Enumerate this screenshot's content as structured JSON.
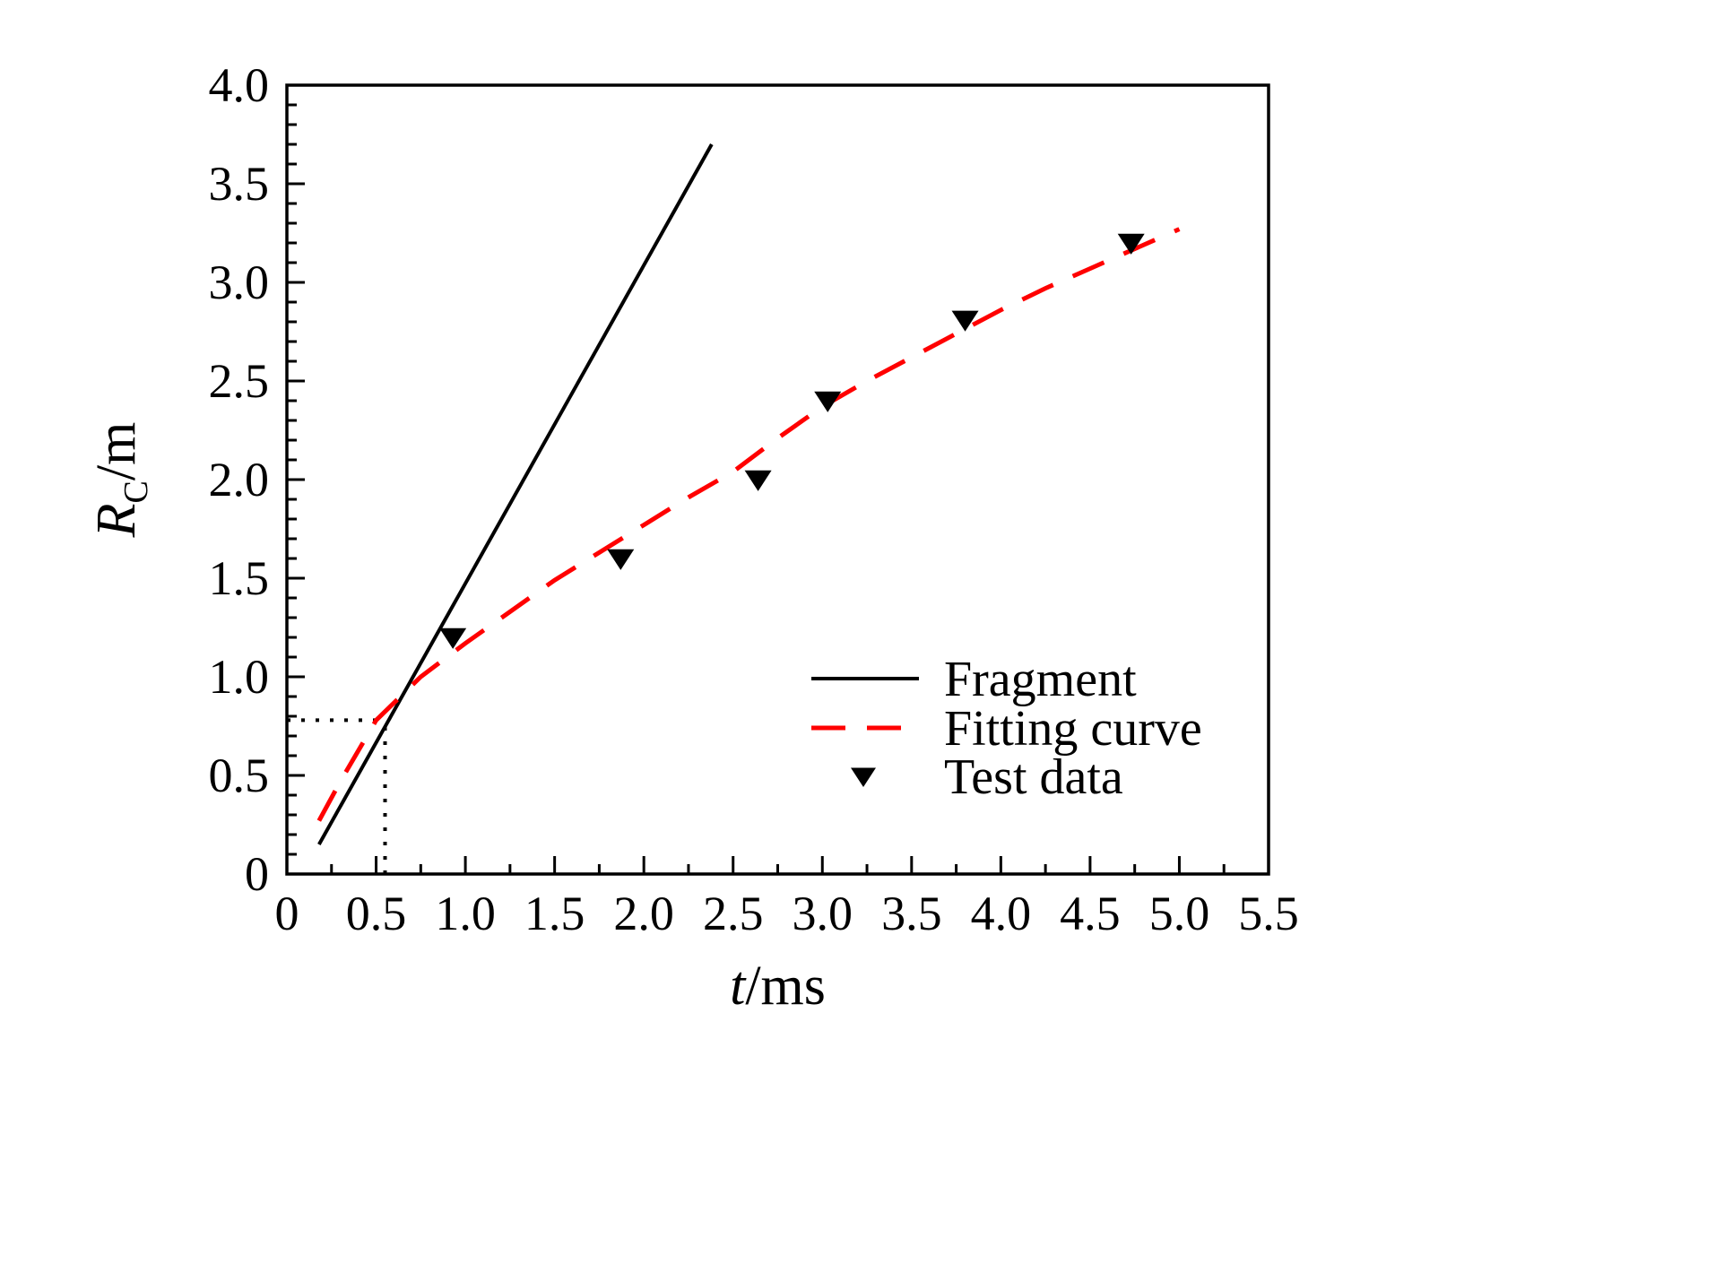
{
  "page": {
    "background": "#ffffff"
  },
  "chart_data": {
    "type": "line",
    "title": "",
    "xlabel": "t/ms",
    "xlabel_parts": [
      {
        "t": "t",
        "style": "italic"
      },
      {
        "t": "/ms",
        "style": "normal"
      }
    ],
    "ylabel": "R_C/m",
    "ylabel_parts": [
      {
        "t": "R",
        "style": "italic"
      },
      {
        "t": "C",
        "style": "sub"
      },
      {
        "t": "/m",
        "style": "normal"
      }
    ],
    "xlim": [
      0,
      5.5
    ],
    "ylim": [
      0,
      4.0
    ],
    "x_major_step": 0.5,
    "x_minor_step": 0.25,
    "y_major_step": 0.5,
    "y_minor_step": 0.1,
    "x_tick_labels": [
      "0",
      "0.5",
      "1.0",
      "1.5",
      "2.0",
      "2.5",
      "3.0",
      "3.5",
      "4.0",
      "4.5",
      "5.0",
      "5.5"
    ],
    "y_tick_labels": [
      "0",
      "0.5",
      "1.0",
      "1.5",
      "2.0",
      "2.5",
      "3.0",
      "3.5",
      "4.0"
    ],
    "grid": false,
    "axis_color": "#000000",
    "accent_color": "#ff0000",
    "series": [
      {
        "name": "Fragment",
        "kind": "line",
        "color": "#000000",
        "dash": "solid",
        "width": 4,
        "points": [
          [
            0.18,
            0.15
          ],
          [
            2.38,
            3.7
          ]
        ]
      },
      {
        "name": "Fitting curve",
        "kind": "line",
        "color": "#ff0000",
        "dash": "dashed",
        "width": 5,
        "points": [
          [
            0.18,
            0.27
          ],
          [
            0.3,
            0.47
          ],
          [
            0.5,
            0.78
          ],
          [
            0.75,
            1.0
          ],
          [
            1.0,
            1.17
          ],
          [
            1.25,
            1.33
          ],
          [
            1.5,
            1.49
          ],
          [
            1.75,
            1.63
          ],
          [
            2.0,
            1.77
          ],
          [
            2.25,
            1.91
          ],
          [
            2.5,
            2.04
          ],
          [
            2.75,
            2.21
          ],
          [
            3.0,
            2.37
          ],
          [
            3.25,
            2.5
          ],
          [
            3.5,
            2.62
          ],
          [
            3.75,
            2.74
          ],
          [
            4.0,
            2.86
          ],
          [
            4.25,
            2.97
          ],
          [
            4.5,
            3.07
          ],
          [
            4.75,
            3.17
          ],
          [
            5.0,
            3.27
          ]
        ]
      },
      {
        "name": "Test data",
        "kind": "scatter",
        "color": "#000000",
        "marker": "triangle-down",
        "points": [
          [
            0.93,
            1.2
          ],
          [
            1.87,
            1.6
          ],
          [
            2.64,
            2.0
          ],
          [
            3.03,
            2.4
          ],
          [
            3.8,
            2.81
          ],
          [
            4.73,
            3.2
          ]
        ]
      }
    ],
    "guides": [
      {
        "kind": "h-dotted",
        "y": 0.78,
        "x0": 0,
        "x1": 0.55
      },
      {
        "kind": "v-dotted",
        "x": 0.55,
        "y0": 0,
        "y1": 0.78
      }
    ],
    "legend": {
      "position": "inside-right-lower",
      "items": [
        "Fragment",
        "Fitting curve",
        "Test data"
      ]
    }
  }
}
